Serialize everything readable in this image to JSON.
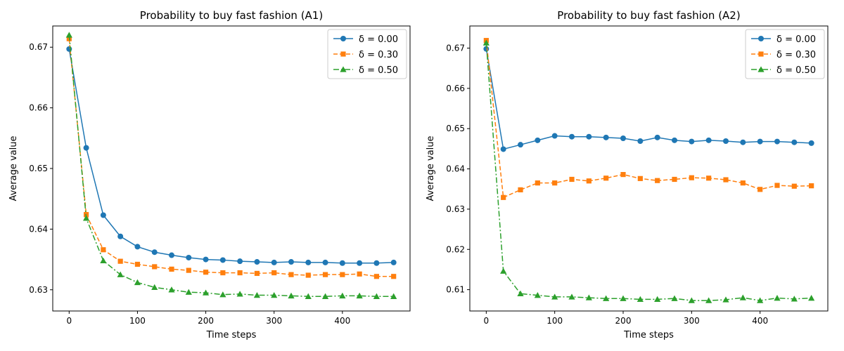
{
  "chart_data": [
    {
      "type": "line",
      "title": "Probability to buy fast fashion (A1)",
      "xlabel": "Time steps",
      "ylabel": "Average value",
      "xlim": [
        -24,
        499
      ],
      "ylim": [
        0.6265,
        0.6735
      ],
      "xticks": [
        0,
        100,
        200,
        300,
        400
      ],
      "yticks": [
        0.63,
        0.64,
        0.65,
        0.66,
        0.67
      ],
      "ytick_labels": [
        "0.63",
        "0.64",
        "0.65",
        "0.66",
        "0.67"
      ],
      "legend_position": "top-right",
      "x": [
        0,
        25,
        50,
        75,
        100,
        125,
        150,
        175,
        200,
        225,
        250,
        275,
        300,
        325,
        350,
        375,
        400,
        425,
        450,
        475
      ],
      "series": [
        {
          "name": "δ = 0.00",
          "color": "#1f77b4",
          "marker": "circle",
          "linestyle": "solid",
          "values": [
            0.6697,
            0.6534,
            0.6423,
            0.6388,
            0.6371,
            0.6362,
            0.6357,
            0.6353,
            0.635,
            0.6349,
            0.6347,
            0.6346,
            0.6345,
            0.6346,
            0.6345,
            0.6345,
            0.6344,
            0.6344,
            0.6344,
            0.6345
          ]
        },
        {
          "name": "δ = 0.30",
          "color": "#ff7f0e",
          "marker": "square",
          "linestyle": "dashed",
          "values": [
            0.6714,
            0.6424,
            0.6366,
            0.6347,
            0.6342,
            0.6338,
            0.6334,
            0.6332,
            0.6329,
            0.6328,
            0.6328,
            0.6327,
            0.6328,
            0.6325,
            0.6324,
            0.6325,
            0.6325,
            0.6326,
            0.6322,
            0.6322
          ]
        },
        {
          "name": "δ = 0.50",
          "color": "#2ca02c",
          "marker": "triangle",
          "linestyle": "dashdot",
          "values": [
            0.672,
            0.6418,
            0.6348,
            0.6325,
            0.6312,
            0.6304,
            0.63,
            0.6296,
            0.6295,
            0.6292,
            0.6293,
            0.6291,
            0.6291,
            0.629,
            0.6289,
            0.6289,
            0.629,
            0.629,
            0.6289,
            0.6289
          ]
        }
      ]
    },
    {
      "type": "line",
      "title": "Probability to buy fast fashion (A2)",
      "xlabel": "Time steps",
      "ylabel": "Average value",
      "xlim": [
        -24,
        499
      ],
      "ylim": [
        0.6047,
        0.6755
      ],
      "xticks": [
        0,
        100,
        200,
        300,
        400
      ],
      "yticks": [
        0.61,
        0.62,
        0.63,
        0.64,
        0.65,
        0.66,
        0.67
      ],
      "ytick_labels": [
        "0.61",
        "0.62",
        "0.63",
        "0.64",
        "0.65",
        "0.66",
        "0.67"
      ],
      "legend_position": "top-right",
      "x": [
        0,
        25,
        50,
        75,
        100,
        125,
        150,
        175,
        200,
        225,
        250,
        275,
        300,
        325,
        350,
        375,
        400,
        425,
        450,
        475
      ],
      "series": [
        {
          "name": "δ = 0.00",
          "color": "#1f77b4",
          "marker": "circle",
          "linestyle": "solid",
          "values": [
            0.6698,
            0.6449,
            0.646,
            0.6471,
            0.6482,
            0.648,
            0.648,
            0.6478,
            0.6476,
            0.6469,
            0.6478,
            0.6471,
            0.6468,
            0.6471,
            0.6469,
            0.6466,
            0.6468,
            0.6468,
            0.6466,
            0.6464
          ]
        },
        {
          "name": "δ = 0.30",
          "color": "#ff7f0e",
          "marker": "square",
          "linestyle": "dashed",
          "values": [
            0.6719,
            0.6329,
            0.6348,
            0.6365,
            0.6365,
            0.6374,
            0.637,
            0.6377,
            0.6386,
            0.6376,
            0.6371,
            0.6374,
            0.6378,
            0.6377,
            0.6373,
            0.6365,
            0.6349,
            0.6359,
            0.6357,
            0.6358
          ]
        },
        {
          "name": "δ = 0.50",
          "color": "#2ca02c",
          "marker": "triangle",
          "linestyle": "dashdot",
          "values": [
            0.6713,
            0.6146,
            0.609,
            0.6086,
            0.6082,
            0.6082,
            0.608,
            0.6078,
            0.6078,
            0.6076,
            0.6076,
            0.6078,
            0.6073,
            0.6073,
            0.6075,
            0.608,
            0.6073,
            0.6079,
            0.6077,
            0.6079
          ]
        }
      ]
    }
  ]
}
